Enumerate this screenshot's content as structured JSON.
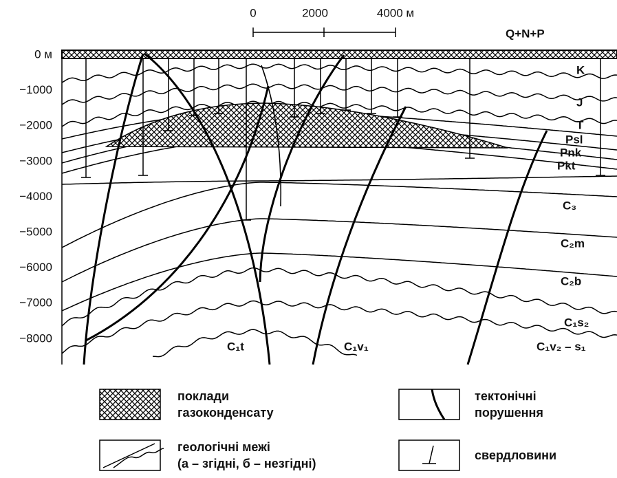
{
  "scale_bar": {
    "labels": [
      "0",
      "2000",
      "4000 м"
    ]
  },
  "depth_labels": [
    "0 м",
    "−1000",
    "−2000",
    "−3000",
    "−4000",
    "−5000",
    "−6000",
    "−7000",
    "−8000"
  ],
  "layer_labels": [
    "Q+N+P",
    "K",
    "J",
    "T",
    "Psl",
    "Pnk",
    "Pkt",
    "C₃",
    "C₂m",
    "C₂b",
    "C₁s₂",
    "C₁t",
    "C₁v₁",
    "C₁v₂ – s₁"
  ],
  "legend": [
    {
      "lines": [
        "поклади",
        "газоконденсату"
      ]
    },
    {
      "lines": [
        "тектонічні",
        "порушення"
      ]
    },
    {
      "lines": [
        "геологічні межі",
        "(а – згідні, б – незгідні)"
      ]
    },
    {
      "lines": [
        "свердловини"
      ]
    }
  ]
}
